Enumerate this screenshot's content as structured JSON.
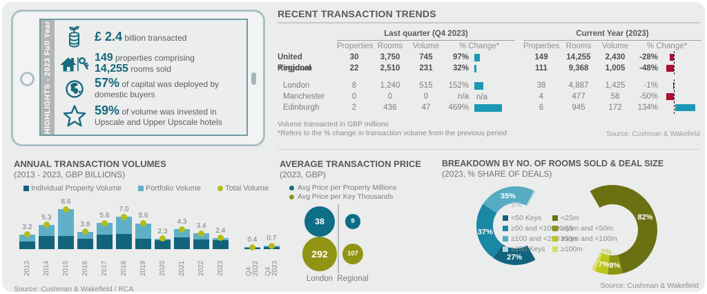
{
  "colors": {
    "accent_teal_text": "#156578",
    "table_bar_teal": "#1b98b4",
    "table_bar_red": "#ad0e31",
    "panel_gray": "#ebecec"
  },
  "highlights": {
    "side_label": "HIGHLIGHTS - 2023 Full Year",
    "items": [
      {
        "icon": "coins-sprout-icon",
        "lines": [
          [
            {
              "t": "£ 2.4",
              "b": true,
              "xl": true
            },
            {
              "t": " billion transacted"
            }
          ]
        ]
      },
      {
        "icon": "house-key-icon",
        "lines": [
          [
            {
              "t": "149",
              "b": true
            },
            {
              "t": " properties comprising"
            }
          ],
          [
            {
              "t": "14,255",
              "b": true
            },
            {
              "t": " rooms sold"
            }
          ]
        ]
      },
      {
        "icon": "globe-icon",
        "lines": [
          [
            {
              "t": "57%",
              "b": true,
              "xl": true
            },
            {
              "t": " of capital was deployed by domestic buyers"
            }
          ]
        ]
      },
      {
        "icon": "star-icon",
        "lines": [
          [
            {
              "t": "59%",
              "b": true,
              "xl": true
            },
            {
              "t": " of volume was invested in Upscale and Upper Upscale hotels"
            }
          ]
        ]
      }
    ]
  },
  "breakdown": {
    "title": "BREAKDOWN BY NO. OF ROOMS SOLD & DEAL SIZE",
    "subtitle": "(2023, % SHARE OF DEALS)",
    "source": "Source: Cushman & Wakefield"
  },
  "chart_data": [
    {
      "id": "recent_transaction_trends",
      "type": "table",
      "title": "RECENT TRANSACTION TRENDS",
      "groups": [
        "Last quarter (Q4 2023)",
        "Current Year (2023)"
      ],
      "columns": [
        "Properties",
        "Rooms",
        "Volume",
        "% Change*"
      ],
      "rows": [
        {
          "label": "United Kingdom",
          "bold": true,
          "q4": {
            "properties": "30",
            "rooms": "3,750",
            "volume": "745",
            "change_pct": 97,
            "change_label": "97%"
          },
          "cy": {
            "properties": "149",
            "rooms": "14,255",
            "volume": "2,430",
            "change_pct": -28,
            "change_label": "-28%"
          }
        },
        {
          "label": "Regional",
          "bold": true,
          "q4": {
            "properties": "22",
            "rooms": "2,510",
            "volume": "231",
            "change_pct": 32,
            "change_label": "32%"
          },
          "cy": {
            "properties": "111",
            "rooms": "9,368",
            "volume": "1,005",
            "change_pct": -48,
            "change_label": "-48%"
          }
        },
        {
          "label": "London",
          "bold": false,
          "q4": {
            "properties": "8",
            "rooms": "1,240",
            "volume": "515",
            "change_pct": 152,
            "change_label": "152%"
          },
          "cy": {
            "properties": "38",
            "rooms": "4,887",
            "volume": "1,425",
            "change_pct": -1,
            "change_label": "-1%"
          }
        },
        {
          "label": "Manchester",
          "bold": false,
          "q4": {
            "properties": "0",
            "rooms": "0",
            "volume": "0",
            "change_pct": null,
            "change_label": "n/a",
            "bar_label": "n/a"
          },
          "cy": {
            "properties": "4",
            "rooms": "477",
            "volume": "58",
            "change_pct": -50,
            "change_label": "-50%"
          }
        },
        {
          "label": "Edinburgh",
          "bold": false,
          "q4": {
            "properties": "2",
            "rooms": "436",
            "volume": "47",
            "change_pct": 469,
            "change_label": "469%"
          },
          "cy": {
            "properties": "6",
            "rooms": "945",
            "volume": "172",
            "change_pct": 134,
            "change_label": "134%"
          }
        }
      ],
      "footnotes": [
        "Volume transacted in GBP millions",
        "*Refers to the % change in transaction volume from the previous period"
      ],
      "source": "Source: Cushman & Wakefield"
    },
    {
      "id": "annual_transaction_volumes",
      "type": "bar",
      "stacked": true,
      "title": "ANNUAL TRANSACTION VOLUMES",
      "subtitle": "(2013 - 2023, GBP BILLIONS)",
      "categories": [
        "2013",
        "2014",
        "2015",
        "2016",
        "2017",
        "2018",
        "2019",
        "2020",
        "2021",
        "2022",
        "2023",
        "Q4\n2022",
        "Q4\n2023"
      ],
      "series": [
        {
          "name": "Individual Property Volume",
          "color": "#11647c",
          "values": [
            1.7,
            2.9,
            2.8,
            2.3,
            3.1,
            3.3,
            2.2,
            2.0,
            2.6,
            2.1,
            2.0,
            0.3,
            0.5
          ]
        },
        {
          "name": "Portfolio Volume",
          "color": "#5fb0c7",
          "values": [
            1.5,
            2.4,
            5.8,
            1.5,
            2.5,
            3.7,
            3.4,
            0.3,
            1.7,
            1.3,
            0.4,
            0.1,
            0.2
          ]
        }
      ],
      "totals": {
        "name": "Total Volume",
        "color": "#b4bd17",
        "values": [
          3.2,
          5.3,
          8.6,
          3.8,
          5.6,
          7.0,
          5.6,
          2.3,
          4.3,
          3.4,
          2.4,
          0.4,
          0.7
        ]
      },
      "ylim": [
        0,
        9
      ],
      "grid": false,
      "legend_position": "top",
      "source": "Source: Cushman & Wakefield / RCA"
    },
    {
      "id": "average_transaction_price",
      "type": "bubble",
      "title": "AVERAGE TRANSACTION PRICE",
      "subtitle": "(2023, GBP)",
      "legend": [
        {
          "label": "Avg Price per Property Millions",
          "color": "#0e6e86"
        },
        {
          "label": "Avg Price per Key Thousands",
          "color": "#8f9512"
        }
      ],
      "groups": [
        {
          "label": "London",
          "property_millions": 38,
          "key_thousands": 292
        },
        {
          "label": "Regional",
          "property_millions": 9,
          "key_thousands": 107
        }
      ]
    },
    {
      "id": "rooms_sold_share",
      "type": "pie",
      "shape": "half-donut",
      "opening": "right",
      "segments": [
        {
          "label": "<50 Keys",
          "pct": 27,
          "color": "#11647c"
        },
        {
          "label": "≥50 and <100 Keys",
          "pct": 37,
          "color": "#1a87a3"
        },
        {
          "label": "≥100 and <250 Keys",
          "pct": 35,
          "color": "#57abc3"
        },
        {
          "label": "≥250 Keys",
          "pct": 1,
          "color": "#b9d6de",
          "pct_label_color": "#b5c3ca"
        }
      ]
    },
    {
      "id": "deal_size_share",
      "type": "pie",
      "shape": "half-donut",
      "opening": "left",
      "segments": [
        {
          "label": "<25m",
          "pct": 82,
          "color": "#6b7113"
        },
        {
          "label": "≥25m and <50m",
          "pct": 8,
          "color": "#8d9414"
        },
        {
          "label": "≥50m and <100m",
          "pct": 7,
          "color": "#bcc61e"
        },
        {
          "label": "≥100m",
          "pct": 2,
          "color": "#dade64",
          "pct_label_color": "#c6cf45"
        }
      ]
    }
  ]
}
